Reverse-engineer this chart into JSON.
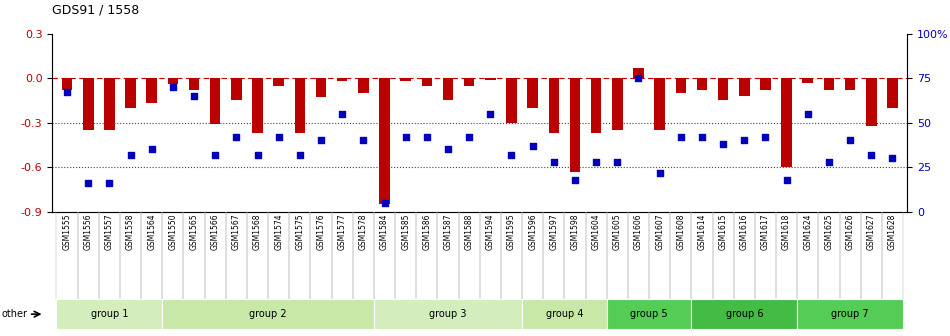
{
  "title": "GDS91 / 1558",
  "samples": [
    "GSM1555",
    "GSM1556",
    "GSM1557",
    "GSM1558",
    "GSM1564",
    "GSM1550",
    "GSM1565",
    "GSM1566",
    "GSM1567",
    "GSM1568",
    "GSM1574",
    "GSM1575",
    "GSM1576",
    "GSM1577",
    "GSM1578",
    "GSM1584",
    "GSM1585",
    "GSM1586",
    "GSM1587",
    "GSM1588",
    "GSM1594",
    "GSM1595",
    "GSM1596",
    "GSM1597",
    "GSM1598",
    "GSM1604",
    "GSM1605",
    "GSM1606",
    "GSM1607",
    "GSM1608",
    "GSM1614",
    "GSM1615",
    "GSM1616",
    "GSM1617",
    "GSM1618",
    "GSM1624",
    "GSM1625",
    "GSM1626",
    "GSM1627",
    "GSM1628"
  ],
  "log_ratio": [
    -0.08,
    -0.35,
    -0.35,
    -0.2,
    -0.17,
    -0.04,
    -0.08,
    -0.31,
    -0.15,
    -0.37,
    -0.05,
    -0.37,
    -0.13,
    -0.02,
    -0.1,
    -0.85,
    -0.02,
    -0.05,
    -0.15,
    -0.05,
    -0.01,
    -0.3,
    -0.2,
    -0.37,
    -0.63,
    -0.37,
    -0.35,
    0.07,
    -0.35,
    -0.1,
    -0.08,
    -0.15,
    -0.12,
    -0.08,
    -0.6,
    -0.03,
    -0.08,
    -0.08,
    -0.32,
    -0.2
  ],
  "percentile": [
    67,
    16,
    16,
    32,
    35,
    70,
    65,
    32,
    42,
    32,
    42,
    32,
    40,
    55,
    40,
    5,
    42,
    42,
    35,
    42,
    55,
    32,
    37,
    28,
    18,
    28,
    28,
    75,
    22,
    42,
    42,
    38,
    40,
    42,
    18,
    55,
    28,
    40,
    32,
    30
  ],
  "groups": [
    {
      "label": "group 1",
      "start": 0,
      "end": 4,
      "color": "#d4edbc"
    },
    {
      "label": "group 2",
      "start": 5,
      "end": 14,
      "color": "#c8e8a8"
    },
    {
      "label": "group 3",
      "start": 15,
      "end": 21,
      "color": "#d4edbc"
    },
    {
      "label": "group 4",
      "start": 22,
      "end": 25,
      "color": "#c8e8a8"
    },
    {
      "label": "group 5",
      "start": 26,
      "end": 29,
      "color": "#55cc55"
    },
    {
      "label": "group 6",
      "start": 30,
      "end": 34,
      "color": "#44bb44"
    },
    {
      "label": "group 7",
      "start": 35,
      "end": 39,
      "color": "#55cc55"
    }
  ],
  "other_label": "other",
  "bar_color": "#bb0000",
  "dot_color": "#0000bb",
  "ylim_left": [
    -0.9,
    0.3
  ],
  "ylim_right": [
    0,
    100
  ],
  "yticks_left": [
    -0.9,
    -0.6,
    -0.3,
    0.0,
    0.3
  ],
  "yticks_right": [
    0,
    25,
    50,
    75,
    100
  ],
  "hline_0_color": "#cc0000",
  "hline_dotted_color": "#444444",
  "bg_color": "#ffffff",
  "plot_bg_color": "#ffffff",
  "group_bg_color": "#cccccc"
}
